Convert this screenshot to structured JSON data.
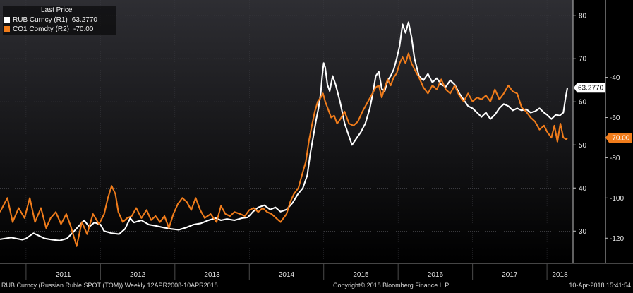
{
  "legend": {
    "title": "Last Price",
    "items": [
      {
        "label": "RUB Curncy  (R1)",
        "value": "63.2770",
        "color": "#ffffff"
      },
      {
        "label": "CO1 Comdty  (R2)",
        "value": "-70.00",
        "color": "#f07c1b"
      }
    ]
  },
  "footer": {
    "left": "RUB Curncy (Russian Ruble SPOT (TOM))  Weekly 12APR2008-10APR2018",
    "center": "Copyright© 2018 Bloomberg Finance L.P.",
    "right": "10-Apr-2018 15:41:54"
  },
  "chart_data": {
    "type": "line",
    "x_labels": [
      "2011",
      "2012",
      "2013",
      "2014",
      "2015",
      "2016",
      "2017",
      "2018"
    ],
    "x_range": [
      2010.65,
      2018.35
    ],
    "y1": {
      "range": [
        23,
        82
      ],
      "ticks": [
        30,
        40,
        50,
        60,
        70,
        80
      ]
    },
    "y2": {
      "range": [
        -131.5,
        -5
      ],
      "ticks": [
        -120,
        -100,
        -80,
        -60,
        -40
      ],
      "tick_labels": [
        "-120",
        "-100",
        "-80",
        "-60",
        "-40"
      ]
    },
    "last_value_tags": [
      {
        "series": "RUB Curncy",
        "value": 63.277,
        "label": "63.2770",
        "color": "#ffffff"
      },
      {
        "series": "CO1 Comdty",
        "value": -70.0,
        "label": "-70.00",
        "color": "#f07c1b"
      }
    ],
    "series": [
      {
        "name": "RUB Curncy",
        "axis": "y1",
        "color": "#ffffff",
        "points": [
          [
            2010.65,
            28.1
          ],
          [
            2010.8,
            28.5
          ],
          [
            2010.95,
            28.0
          ],
          [
            2011.0,
            28.3
          ],
          [
            2011.1,
            29.5
          ],
          [
            2011.25,
            28.3
          ],
          [
            2011.35,
            28.0
          ],
          [
            2011.45,
            27.8
          ],
          [
            2011.55,
            28.3
          ],
          [
            2011.62,
            29.5
          ],
          [
            2011.7,
            31.0
          ],
          [
            2011.78,
            32.5
          ],
          [
            2011.85,
            31.0
          ],
          [
            2011.92,
            32.0
          ],
          [
            2012.0,
            31.5
          ],
          [
            2012.05,
            30.0
          ],
          [
            2012.15,
            29.5
          ],
          [
            2012.25,
            29.3
          ],
          [
            2012.33,
            30.5
          ],
          [
            2012.4,
            33.0
          ],
          [
            2012.45,
            32.0
          ],
          [
            2012.55,
            32.5
          ],
          [
            2012.65,
            31.5
          ],
          [
            2012.75,
            31.2
          ],
          [
            2012.85,
            30.8
          ],
          [
            2012.95,
            30.5
          ],
          [
            2013.05,
            30.3
          ],
          [
            2013.15,
            30.8
          ],
          [
            2013.25,
            31.5
          ],
          [
            2013.35,
            31.8
          ],
          [
            2013.45,
            32.5
          ],
          [
            2013.55,
            33.0
          ],
          [
            2013.62,
            32.5
          ],
          [
            2013.7,
            32.8
          ],
          [
            2013.8,
            32.5
          ],
          [
            2013.9,
            33.0
          ],
          [
            2013.98,
            33.2
          ],
          [
            2014.05,
            34.5
          ],
          [
            2014.12,
            35.5
          ],
          [
            2014.2,
            36.0
          ],
          [
            2014.28,
            35.0
          ],
          [
            2014.35,
            35.5
          ],
          [
            2014.42,
            34.5
          ],
          [
            2014.5,
            35.0
          ],
          [
            2014.58,
            36.5
          ],
          [
            2014.65,
            38.5
          ],
          [
            2014.72,
            40.0
          ],
          [
            2014.78,
            43.0
          ],
          [
            2014.82,
            48.0
          ],
          [
            2014.86,
            52.0
          ],
          [
            2014.9,
            56.0
          ],
          [
            2014.93,
            58.5
          ],
          [
            2014.96,
            62.0
          ],
          [
            2014.98,
            66.0
          ],
          [
            2015.0,
            69.0
          ],
          [
            2015.02,
            68.0
          ],
          [
            2015.05,
            64.0
          ],
          [
            2015.08,
            62.5
          ],
          [
            2015.12,
            66.0
          ],
          [
            2015.16,
            64.0
          ],
          [
            2015.22,
            60.0
          ],
          [
            2015.28,
            55.0
          ],
          [
            2015.34,
            52.0
          ],
          [
            2015.38,
            50.0
          ],
          [
            2015.44,
            51.5
          ],
          [
            2015.5,
            53.0
          ],
          [
            2015.56,
            55.0
          ],
          [
            2015.62,
            58.5
          ],
          [
            2015.66,
            62.0
          ],
          [
            2015.7,
            66.0
          ],
          [
            2015.74,
            67.0
          ],
          [
            2015.78,
            63.0
          ],
          [
            2015.82,
            62.5
          ],
          [
            2015.86,
            65.0
          ],
          [
            2015.9,
            66.0
          ],
          [
            2015.94,
            67.5
          ],
          [
            2015.98,
            70.0
          ],
          [
            2016.02,
            73.0
          ],
          [
            2016.06,
            78.0
          ],
          [
            2016.1,
            76.0
          ],
          [
            2016.14,
            78.5
          ],
          [
            2016.18,
            75.0
          ],
          [
            2016.22,
            70.0
          ],
          [
            2016.28,
            66.0
          ],
          [
            2016.34,
            65.0
          ],
          [
            2016.4,
            66.5
          ],
          [
            2016.46,
            64.5
          ],
          [
            2016.52,
            65.5
          ],
          [
            2016.58,
            64.0
          ],
          [
            2016.64,
            63.5
          ],
          [
            2016.7,
            65.0
          ],
          [
            2016.76,
            64.0
          ],
          [
            2016.82,
            62.0
          ],
          [
            2016.88,
            60.5
          ],
          [
            2016.94,
            59.0
          ],
          [
            2017.0,
            58.5
          ],
          [
            2017.06,
            57.5
          ],
          [
            2017.12,
            56.5
          ],
          [
            2017.18,
            57.5
          ],
          [
            2017.24,
            56.0
          ],
          [
            2017.3,
            57.0
          ],
          [
            2017.36,
            58.5
          ],
          [
            2017.42,
            59.5
          ],
          [
            2017.48,
            59.0
          ],
          [
            2017.54,
            58.0
          ],
          [
            2017.6,
            58.5
          ],
          [
            2017.66,
            58.0
          ],
          [
            2017.72,
            58.3
          ],
          [
            2017.78,
            57.5
          ],
          [
            2017.84,
            57.8
          ],
          [
            2017.9,
            58.5
          ],
          [
            2017.96,
            57.5
          ],
          [
            2018.0,
            57.0
          ],
          [
            2018.06,
            56.0
          ],
          [
            2018.12,
            57.0
          ],
          [
            2018.17,
            56.8
          ],
          [
            2018.22,
            57.5
          ],
          [
            2018.25,
            61.0
          ],
          [
            2018.275,
            63.277
          ]
        ]
      },
      {
        "name": "CO1 Comdty",
        "axis": "y2",
        "color": "#f07c1b",
        "points": [
          [
            2010.65,
            -107
          ],
          [
            2010.75,
            -100
          ],
          [
            2010.82,
            -112
          ],
          [
            2010.9,
            -105
          ],
          [
            2010.98,
            -110
          ],
          [
            2011.05,
            -100
          ],
          [
            2011.12,
            -112
          ],
          [
            2011.2,
            -105
          ],
          [
            2011.27,
            -115
          ],
          [
            2011.33,
            -110
          ],
          [
            2011.4,
            -107
          ],
          [
            2011.47,
            -113
          ],
          [
            2011.54,
            -108
          ],
          [
            2011.6,
            -114
          ],
          [
            2011.68,
            -124
          ],
          [
            2011.75,
            -112
          ],
          [
            2011.82,
            -118
          ],
          [
            2011.9,
            -108
          ],
          [
            2011.98,
            -113
          ],
          [
            2012.05,
            -108
          ],
          [
            2012.1,
            -100
          ],
          [
            2012.15,
            -94
          ],
          [
            2012.2,
            -98
          ],
          [
            2012.24,
            -107
          ],
          [
            2012.3,
            -112
          ],
          [
            2012.36,
            -110
          ],
          [
            2012.42,
            -109
          ],
          [
            2012.48,
            -105
          ],
          [
            2012.55,
            -110
          ],
          [
            2012.62,
            -106
          ],
          [
            2012.68,
            -111
          ],
          [
            2012.74,
            -109
          ],
          [
            2012.8,
            -112
          ],
          [
            2012.86,
            -109
          ],
          [
            2012.92,
            -115
          ],
          [
            2012.98,
            -108
          ],
          [
            2013.04,
            -103
          ],
          [
            2013.1,
            -100
          ],
          [
            2013.16,
            -102
          ],
          [
            2013.22,
            -106
          ],
          [
            2013.28,
            -100
          ],
          [
            2013.34,
            -106
          ],
          [
            2013.4,
            -110
          ],
          [
            2013.48,
            -108
          ],
          [
            2013.56,
            -112
          ],
          [
            2013.62,
            -104
          ],
          [
            2013.68,
            -108
          ],
          [
            2013.74,
            -109
          ],
          [
            2013.8,
            -107
          ],
          [
            2013.88,
            -108
          ],
          [
            2013.94,
            -109
          ],
          [
            2014.0,
            -106
          ],
          [
            2014.06,
            -105
          ],
          [
            2014.12,
            -107
          ],
          [
            2014.18,
            -105
          ],
          [
            2014.24,
            -107
          ],
          [
            2014.3,
            -108
          ],
          [
            2014.36,
            -110
          ],
          [
            2014.42,
            -112
          ],
          [
            2014.5,
            -108
          ],
          [
            2014.55,
            -102
          ],
          [
            2014.6,
            -98
          ],
          [
            2014.66,
            -95
          ],
          [
            2014.72,
            -87
          ],
          [
            2014.76,
            -82
          ],
          [
            2014.8,
            -72
          ],
          [
            2014.84,
            -64
          ],
          [
            2014.88,
            -57
          ],
          [
            2014.92,
            -52
          ],
          [
            2014.96,
            -50
          ],
          [
            2014.99,
            -48
          ],
          [
            2015.02,
            -52
          ],
          [
            2015.06,
            -56
          ],
          [
            2015.1,
            -60
          ],
          [
            2015.14,
            -59
          ],
          [
            2015.18,
            -63
          ],
          [
            2015.22,
            -61
          ],
          [
            2015.28,
            -57
          ],
          [
            2015.34,
            -63
          ],
          [
            2015.4,
            -64
          ],
          [
            2015.46,
            -62
          ],
          [
            2015.52,
            -57
          ],
          [
            2015.58,
            -53
          ],
          [
            2015.64,
            -49
          ],
          [
            2015.7,
            -45
          ],
          [
            2015.74,
            -44
          ],
          [
            2015.78,
            -50
          ],
          [
            2015.82,
            -45
          ],
          [
            2015.86,
            -41
          ],
          [
            2015.9,
            -44
          ],
          [
            2015.94,
            -40
          ],
          [
            2015.98,
            -38
          ],
          [
            2016.02,
            -33
          ],
          [
            2016.06,
            -30
          ],
          [
            2016.1,
            -33
          ],
          [
            2016.14,
            -28
          ],
          [
            2016.18,
            -33
          ],
          [
            2016.22,
            -36
          ],
          [
            2016.28,
            -40
          ],
          [
            2016.34,
            -45
          ],
          [
            2016.4,
            -48
          ],
          [
            2016.46,
            -44
          ],
          [
            2016.52,
            -46
          ],
          [
            2016.58,
            -41
          ],
          [
            2016.64,
            -46
          ],
          [
            2016.7,
            -48
          ],
          [
            2016.76,
            -44
          ],
          [
            2016.82,
            -49
          ],
          [
            2016.88,
            -52
          ],
          [
            2016.94,
            -48
          ],
          [
            2017.0,
            -52
          ],
          [
            2017.06,
            -50
          ],
          [
            2017.12,
            -51
          ],
          [
            2017.18,
            -49
          ],
          [
            2017.24,
            -52
          ],
          [
            2017.3,
            -46
          ],
          [
            2017.36,
            -51
          ],
          [
            2017.42,
            -48
          ],
          [
            2017.48,
            -44
          ],
          [
            2017.54,
            -47
          ],
          [
            2017.6,
            -48
          ],
          [
            2017.66,
            -55
          ],
          [
            2017.72,
            -57
          ],
          [
            2017.78,
            -60
          ],
          [
            2017.84,
            -62
          ],
          [
            2017.9,
            -66
          ],
          [
            2017.96,
            -64
          ],
          [
            2018.0,
            -67
          ],
          [
            2018.06,
            -70
          ],
          [
            2018.1,
            -64
          ],
          [
            2018.14,
            -72
          ],
          [
            2018.18,
            -63
          ],
          [
            2018.22,
            -70
          ],
          [
            2018.26,
            -70.8
          ],
          [
            2018.275,
            -70.0
          ]
        ]
      }
    ]
  }
}
